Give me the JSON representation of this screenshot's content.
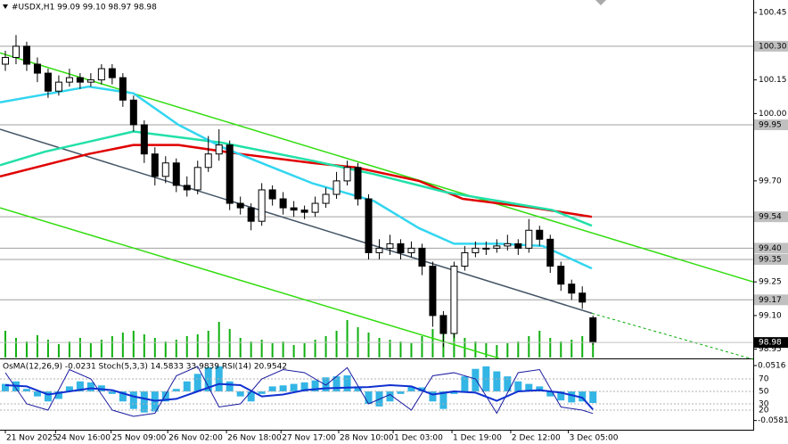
{
  "chart_data": [
    {
      "type": "candlestick",
      "title": "#USDX,H1  99.09 99.10 98.97 98.98",
      "xlim": [
        -0.5,
        70
      ],
      "ylim": [
        98.913,
        100.506
      ],
      "yticks": [
        100.45,
        100.15,
        {
          "value": 100.0,
          "label": "100.00"
        },
        {
          "value": 99.7,
          "label": "99.70"
        },
        99.25,
        {
          "value": 99.1,
          "label": "99.10"
        },
        98.95
      ],
      "levels": [
        {
          "value": 100.3,
          "label": "100.30"
        },
        {
          "value": 99.95,
          "label": "99.95"
        },
        99.54,
        {
          "value": 99.4,
          "label": "99.40"
        },
        99.35,
        99.17
      ],
      "last_price": 98.98,
      "xticks": [
        {
          "value": 0,
          "label": "21 Nov 2025"
        },
        {
          "value": 4.7,
          "label": "24 Nov 16:00"
        },
        {
          "value": 9.9,
          "label": "25 Nov 09:00"
        },
        {
          "value": 15.2,
          "label": "26 Nov 02:00"
        },
        {
          "value": 20.7,
          "label": "26 Nov 18:00"
        },
        {
          "value": 25.8,
          "label": "27 Nov 17:00"
        },
        {
          "value": 31.2,
          "label": "28 Nov 10:00"
        },
        {
          "value": 36.3,
          "label": "1 Dec 03:00"
        },
        {
          "value": 41.8,
          "label": "1 Dec 19:00"
        },
        {
          "value": 47.3,
          "label": "2 Dec 12:00"
        },
        {
          "value": 52.7,
          "label": "3 Dec 05:00"
        }
      ],
      "open": [
        100.22,
        100.25,
        100.3,
        100.22,
        100.18,
        100.1,
        100.14,
        100.16,
        100.14,
        100.15,
        100.2,
        100.16,
        100.06,
        99.95,
        99.82,
        99.72,
        99.78,
        99.68,
        99.66,
        99.76,
        99.82,
        99.86,
        99.6,
        99.58,
        99.52,
        99.66,
        99.62,
        99.58,
        99.57,
        99.56,
        99.6,
        99.64,
        99.7,
        99.76,
        99.62,
        99.38,
        99.4,
        99.42,
        99.38,
        99.4,
        99.32,
        99.1,
        99.02,
        99.32,
        99.38,
        99.4,
        99.4,
        99.41,
        99.42,
        99.4,
        99.48,
        99.44,
        99.32,
        99.24,
        99.2,
        99.09
      ],
      "high": [
        100.28,
        100.35,
        100.32,
        100.25,
        100.2,
        100.17,
        100.2,
        100.18,
        100.18,
        100.22,
        100.22,
        100.18,
        100.08,
        99.97,
        99.85,
        99.81,
        99.8,
        99.72,
        99.79,
        99.9,
        99.93,
        99.88,
        99.63,
        99.6,
        99.69,
        99.68,
        99.65,
        99.61,
        99.59,
        99.63,
        99.67,
        99.74,
        99.79,
        99.78,
        99.64,
        99.44,
        99.46,
        99.44,
        99.43,
        99.42,
        99.34,
        99.12,
        99.34,
        99.41,
        99.43,
        99.43,
        99.44,
        99.46,
        99.44,
        99.53,
        99.5,
        99.46,
        99.34,
        99.26,
        99.23,
        99.1
      ],
      "low": [
        100.19,
        100.22,
        100.19,
        100.14,
        100.07,
        100.08,
        100.12,
        100.11,
        100.12,
        100.13,
        100.13,
        100.03,
        99.92,
        99.78,
        99.68,
        99.69,
        99.65,
        99.63,
        99.64,
        99.74,
        99.79,
        99.57,
        99.55,
        99.48,
        99.5,
        99.59,
        99.55,
        99.54,
        99.53,
        99.54,
        99.58,
        99.62,
        99.68,
        99.59,
        99.35,
        99.35,
        99.37,
        99.35,
        99.36,
        99.28,
        99.05,
        98.96,
        99.0,
        99.3,
        99.36,
        99.37,
        99.38,
        99.39,
        99.37,
        99.38,
        99.41,
        99.29,
        99.21,
        99.17,
        99.13,
        98.97
      ],
      "close": [
        100.25,
        100.3,
        100.22,
        100.18,
        100.1,
        100.14,
        100.16,
        100.14,
        100.15,
        100.2,
        100.16,
        100.06,
        99.95,
        99.82,
        99.72,
        99.78,
        99.68,
        99.66,
        99.76,
        99.82,
        99.86,
        99.6,
        99.58,
        99.52,
        99.66,
        99.62,
        99.58,
        99.57,
        99.56,
        99.6,
        99.64,
        99.7,
        99.76,
        99.62,
        99.38,
        99.4,
        99.42,
        99.38,
        99.4,
        99.32,
        99.1,
        99.02,
        99.32,
        99.38,
        99.4,
        99.4,
        99.41,
        99.42,
        99.4,
        99.48,
        99.44,
        99.32,
        99.24,
        99.2,
        99.16,
        98.98
      ],
      "volume_lim": [
        0,
        100
      ],
      "volume": [
        30,
        22,
        18,
        25,
        20,
        15,
        18,
        22,
        16,
        20,
        24,
        28,
        30,
        26,
        22,
        18,
        20,
        24,
        26,
        30,
        40,
        32,
        22,
        18,
        20,
        16,
        18,
        14,
        16,
        20,
        24,
        30,
        42,
        34,
        28,
        22,
        20,
        18,
        16,
        24,
        32,
        38,
        30,
        22,
        18,
        16,
        14,
        16,
        18,
        24,
        30,
        22,
        18,
        20,
        24,
        30
      ],
      "ma": [
        {
          "color": "#e00000",
          "x": [
            -0.5,
            7.8,
            12,
            16.2,
            22,
            28.7,
            32.8,
            38.7,
            42.8,
            49.5,
            54.9
          ],
          "values": [
            99.72,
            99.82,
            99.86,
            99.86,
            99.82,
            99.78,
            99.76,
            99.7,
            99.62,
            99.58,
            99.54
          ]
        },
        {
          "color": "#22e0a8",
          "x": [
            -0.5,
            3.7,
            12,
            20.3,
            28.7,
            34.5,
            41.2,
            46.2,
            51.2,
            54.9
          ],
          "values": [
            99.77,
            99.83,
            99.92,
            99.87,
            99.79,
            99.73,
            99.65,
            99.61,
            99.57,
            99.5
          ]
        },
        {
          "color": "#33d6f0",
          "x": [
            -0.5,
            7.8,
            12,
            16.2,
            20.3,
            24.5,
            28.7,
            34.5,
            38.7,
            42,
            46.2,
            50.3,
            54.9
          ],
          "values": [
            100.05,
            100.12,
            100.09,
            99.95,
            99.85,
            99.77,
            99.69,
            99.61,
            99.49,
            99.42,
            99.42,
            99.41,
            99.31
          ]
        }
      ],
      "trendlines": [
        {
          "color": "#33dd11",
          "dashed": false,
          "x": [
            -0.5,
            70
          ],
          "values": [
            100.27,
            99.25
          ]
        },
        {
          "color": "#33dd11",
          "dashed": false,
          "x": [
            -0.5,
            46.2
          ],
          "values": [
            99.58,
            98.91
          ]
        },
        {
          "color": "#445566",
          "dashed": false,
          "x": [
            -0.5,
            54.9
          ],
          "values": [
            99.93,
            99.11
          ]
        },
        {
          "color": "#00aa00",
          "dashed": true,
          "x": [
            54.9,
            70
          ],
          "values": [
            99.11,
            98.905
          ]
        }
      ]
    },
    {
      "type": "indicator",
      "title": "OsMA(12,26,9) -0.0231  Stoch(5,3,3) 14.5833 33.9839  RSI(14) 20.9542",
      "ylim": [
        -11.4,
        100
      ],
      "yticks": [
        70,
        50,
        30,
        20
      ],
      "y2lim": [
        -0.0765,
        0.0623
      ],
      "y2ticks": [
        0.0516,
        -0.0581
      ],
      "osma_color": "#33b5e5",
      "osma": [
        0.015,
        0.02,
        0.005,
        -0.01,
        -0.02,
        -0.015,
        0.01,
        0.02,
        0.018,
        0.012,
        -0.005,
        -0.02,
        -0.035,
        -0.042,
        -0.04,
        -0.02,
        0.005,
        0.02,
        0.035,
        0.048,
        0.05,
        0.02,
        -0.01,
        -0.02,
        -0.005,
        0.01,
        0.012,
        0.015,
        0.018,
        0.022,
        0.028,
        0.03,
        0.032,
        0.01,
        -0.025,
        -0.03,
        -0.02,
        -0.005,
        0.01,
        0.008,
        -0.02,
        -0.035,
        -0.005,
        0.03,
        0.045,
        0.05,
        0.04,
        0.03,
        0.02,
        0.015,
        0.01,
        -0.01,
        -0.018,
        -0.022,
        -0.02,
        -0.0231
      ],
      "series": [
        {
          "color": "#1a1aa0",
          "width": 1,
          "x": [
            0,
            2,
            4,
            6,
            8,
            10,
            12,
            14,
            16,
            18,
            20,
            22,
            24,
            26,
            28,
            30,
            32,
            34,
            36,
            38,
            40,
            42,
            44,
            46,
            48,
            50,
            52,
            54,
            55
          ],
          "values": [
            80,
            30,
            20,
            85,
            70,
            20,
            10,
            15,
            75,
            90,
            25,
            30,
            70,
            85,
            80,
            60,
            88,
            30,
            45,
            20,
            75,
            80,
            70,
            15,
            80,
            85,
            25,
            20,
            14.5833
          ]
        },
        {
          "color": "#1030d0",
          "width": 2,
          "x": [
            0,
            2,
            4,
            6,
            8,
            10,
            12,
            14,
            16,
            18,
            20,
            22,
            24,
            26,
            28,
            30,
            32,
            34,
            36,
            38,
            40,
            42,
            44,
            46,
            48,
            50,
            52,
            54,
            55
          ],
          "values": [
            60,
            58,
            45,
            50,
            55,
            52,
            42,
            35,
            38,
            50,
            62,
            60,
            42,
            45,
            52,
            55,
            56,
            57,
            60,
            58,
            45,
            50,
            48,
            35,
            50,
            52,
            48,
            40,
            20.9542
          ]
        }
      ]
    }
  ]
}
